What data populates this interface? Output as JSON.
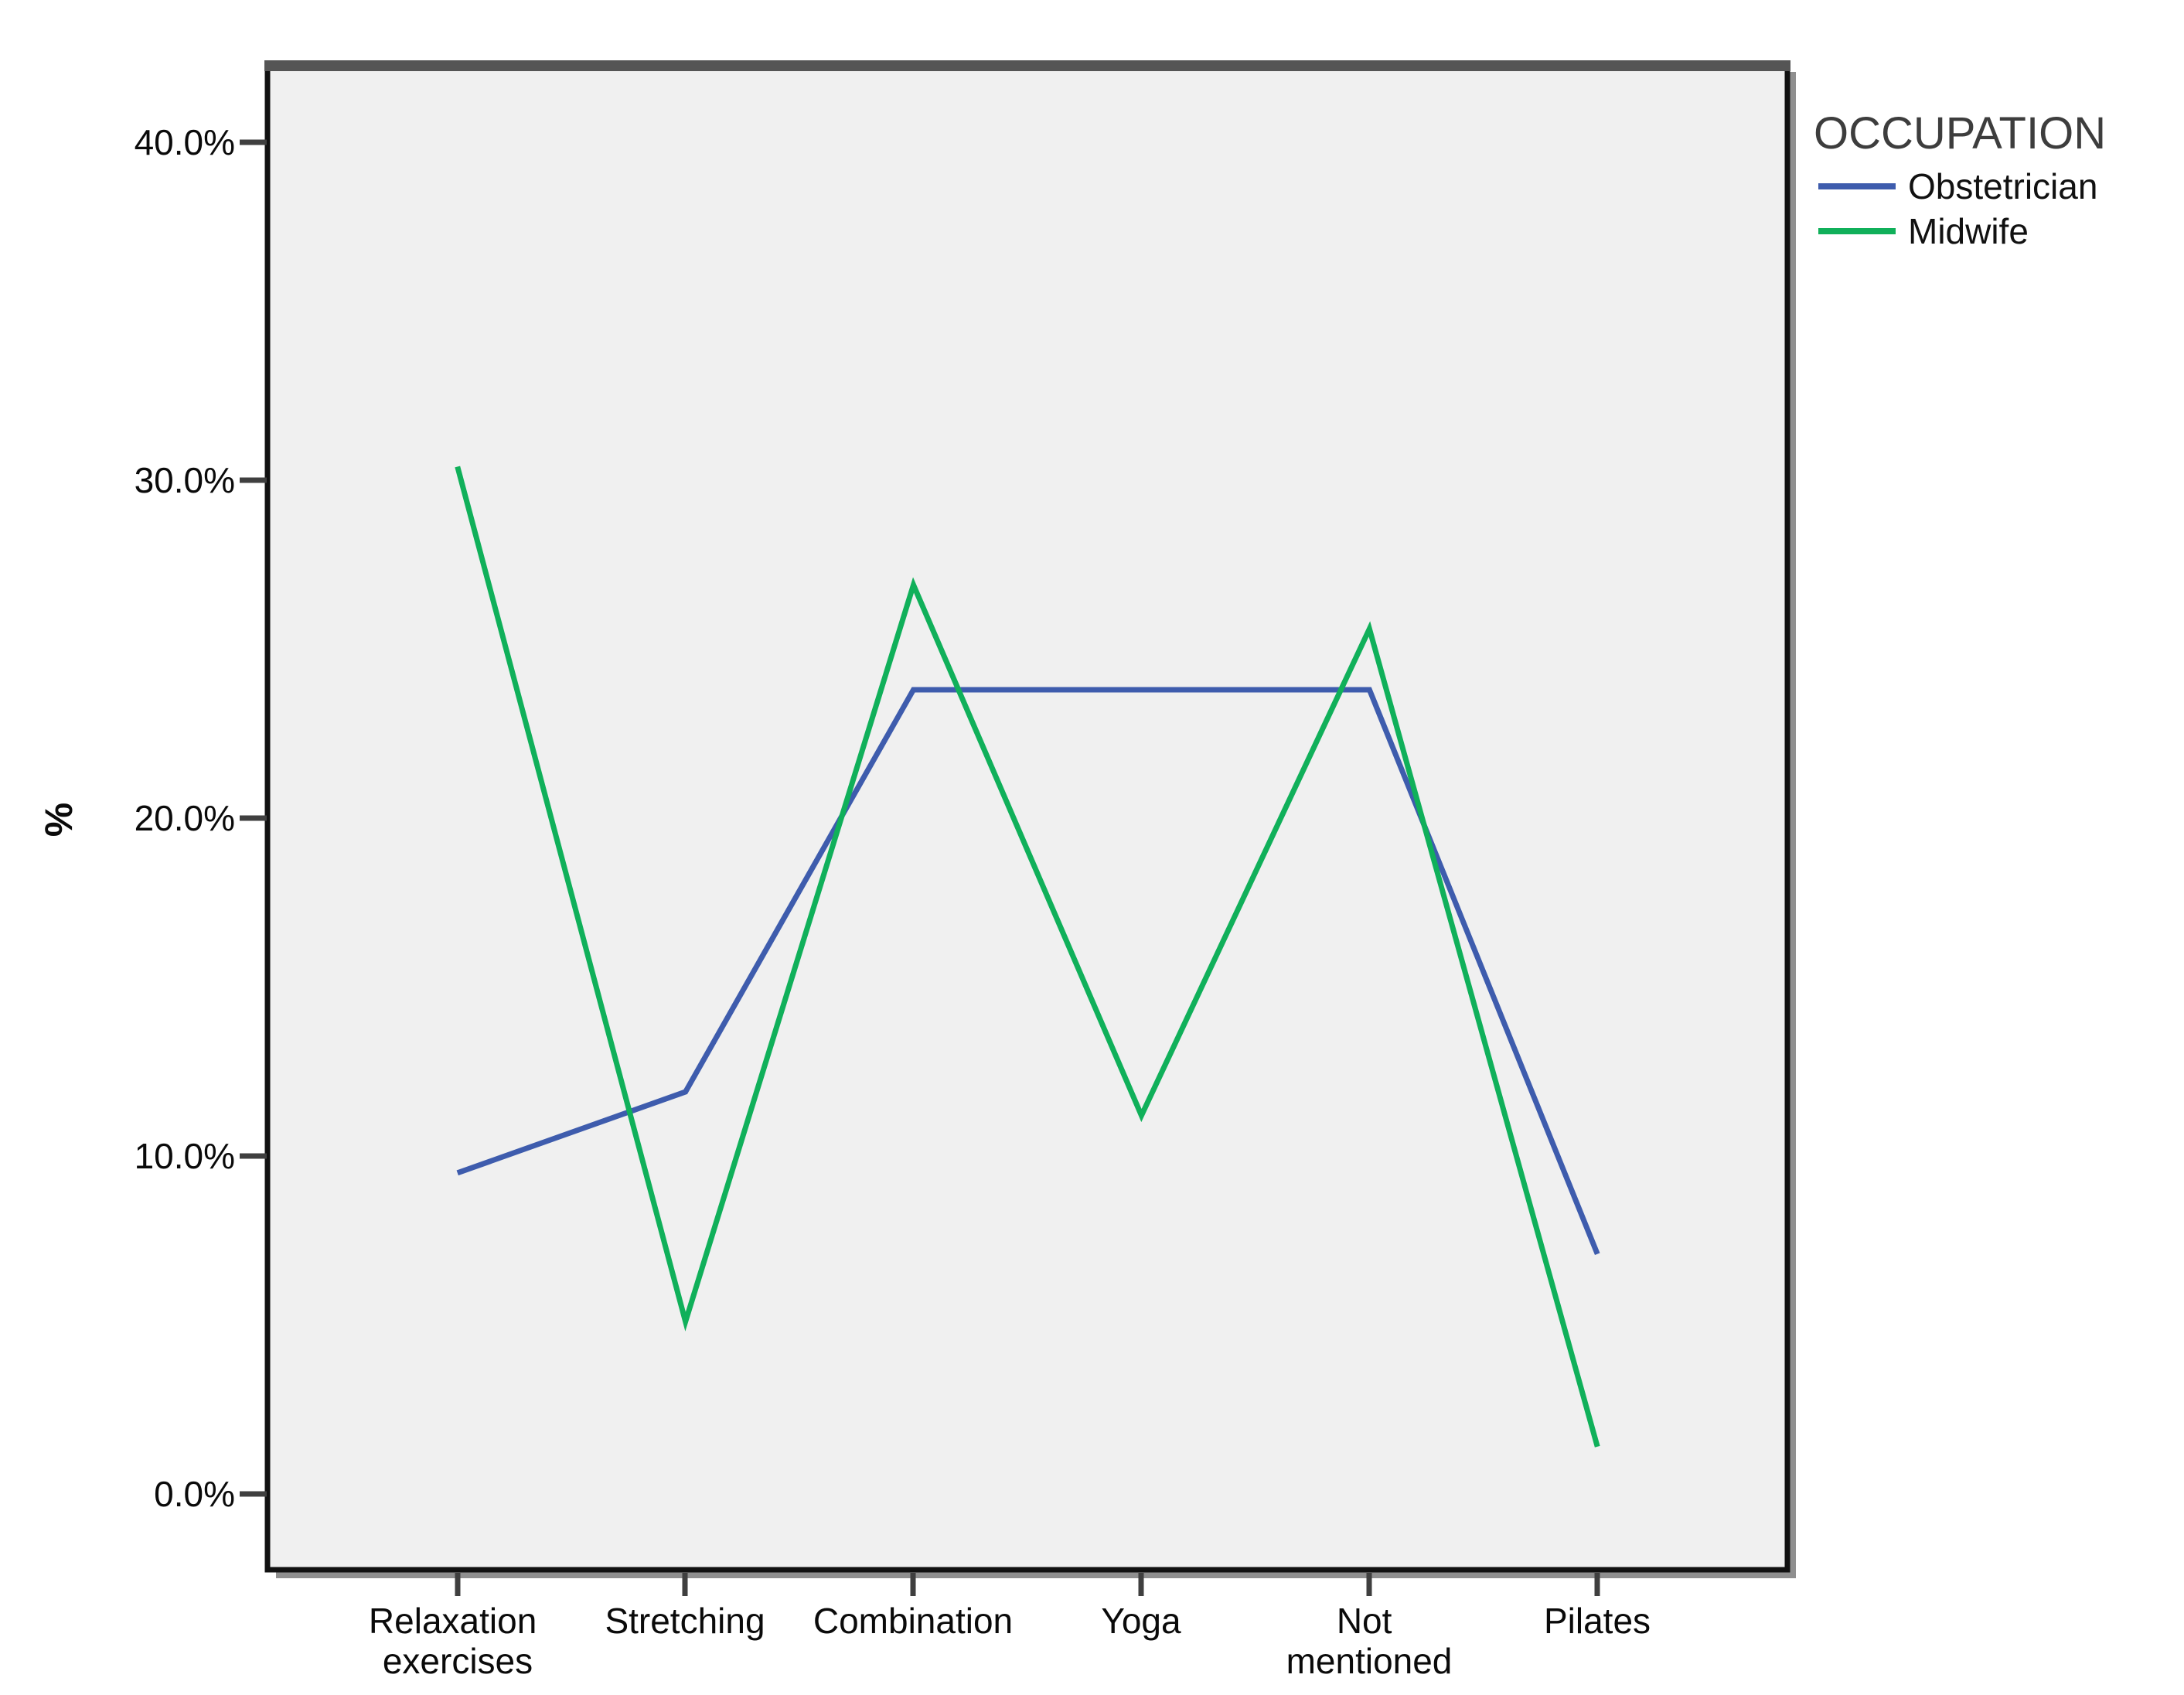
{
  "figure": {
    "background_color": "#ffffff",
    "plot_background_color": "#f0f0f0",
    "border_color": "#111111",
    "shadow_color": "#8f8f8f",
    "top_band_color": "#555555"
  },
  "chart_data": {
    "type": "line",
    "title": "",
    "categories": [
      "Relaxation exercises",
      "Stretching",
      "Combination",
      "Yoga",
      "Not mentioned",
      "Pilates"
    ],
    "category_label_lines": [
      [
        "Relaxation",
        "exercises"
      ],
      [
        "Stretching",
        ""
      ],
      [
        "Combination",
        ""
      ],
      [
        "Yoga",
        ""
      ],
      [
        "Not",
        "mentioned"
      ],
      [
        "Pilates",
        ""
      ]
    ],
    "series": [
      {
        "name": "Obstetrician",
        "color": "#3E5CAD",
        "values": [
          9.5,
          11.9,
          23.8,
          23.8,
          23.8,
          7.1
        ]
      },
      {
        "name": "Midwife",
        "color": "#10B05A",
        "values": [
          30.4,
          5.1,
          26.9,
          11.2,
          25.6,
          1.4
        ]
      }
    ],
    "xlabel": "",
    "ylabel": "%",
    "y_ticks": [
      40,
      30,
      20,
      10,
      0
    ],
    "y_tick_labels": [
      "40.0%",
      "30.0%",
      "20.0%",
      "10.0%",
      "0.0%"
    ],
    "ylim": [
      -2.2,
      42.3
    ],
    "grid": "off",
    "legend_title": "OCCUPATION",
    "legend_position": "outside-top-right"
  }
}
